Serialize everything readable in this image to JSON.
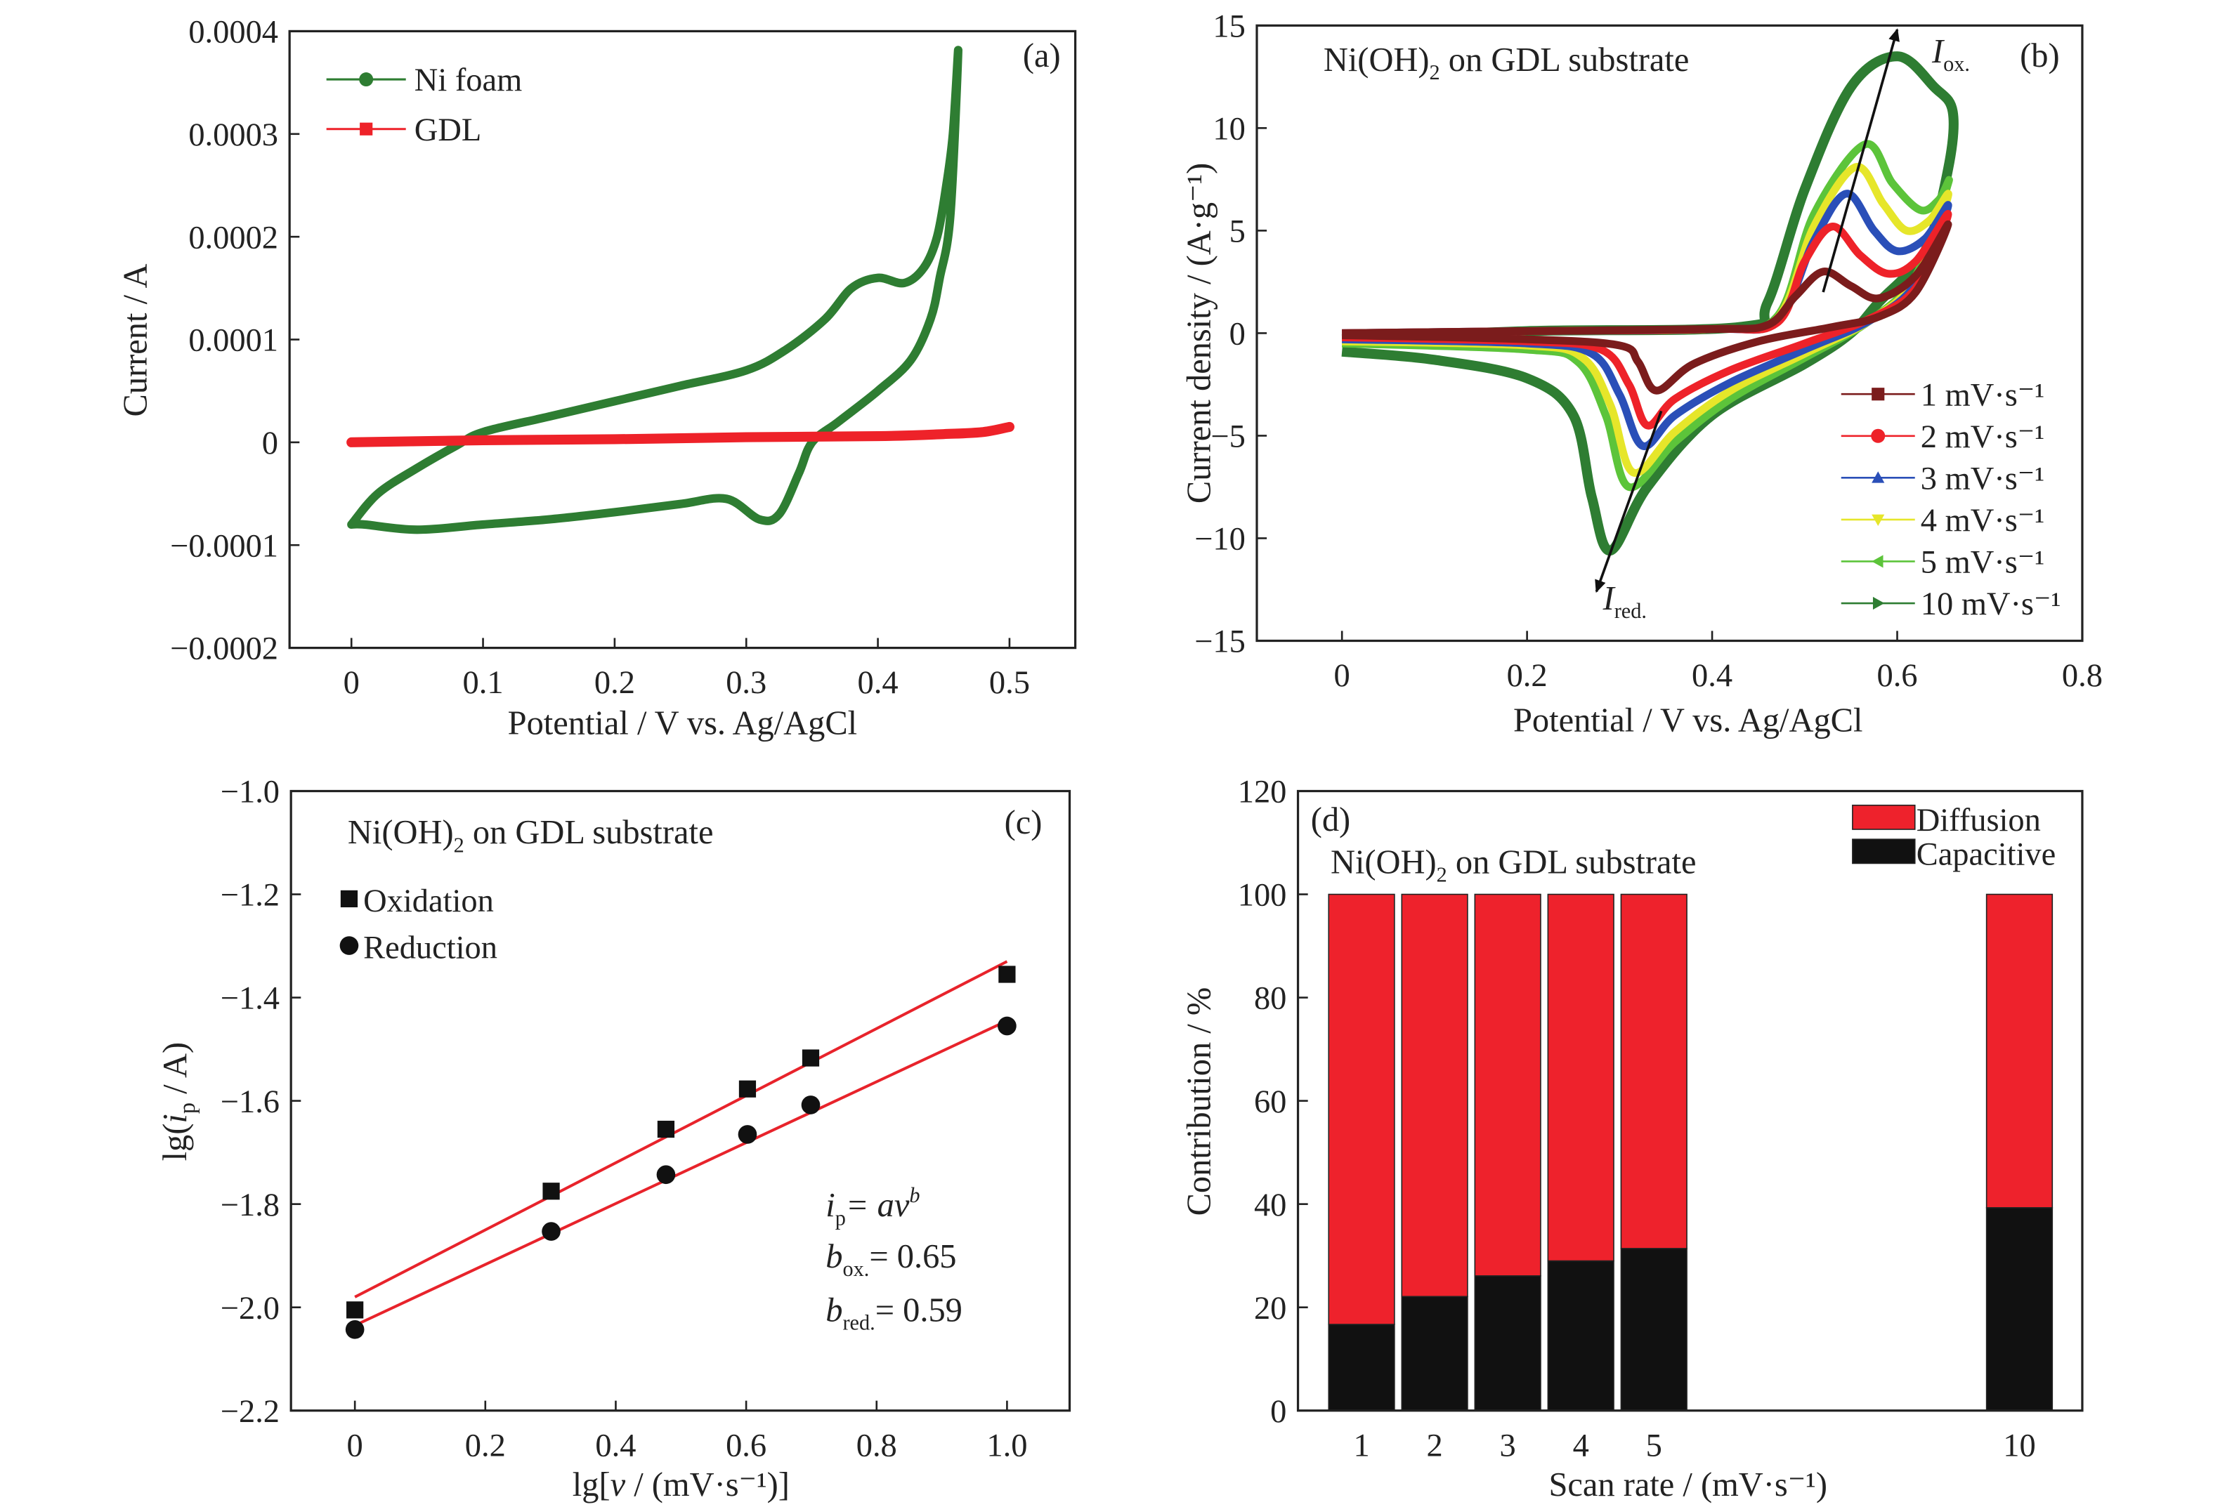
{
  "colors": {
    "ni_foam": "#2e7d32",
    "gdl": "#ee2229",
    "fit": "#e8232b",
    "diffusion": "#ee222c",
    "capacitive": "#111111",
    "r1": "#7b1c1c",
    "r2": "#ee2229",
    "r3": "#2a4fb8",
    "r4": "#e6e62a",
    "r5": "#5cc43a",
    "r10": "#2e7d32"
  },
  "chart_data": [
    {
      "panel": "(a)",
      "type": "line",
      "xlabel": "Potential / V vs. Ag/AgCl",
      "ylabel": "Current / A",
      "xlim": [
        -0.047,
        0.55
      ],
      "ylim": [
        -0.0002,
        0.0004
      ],
      "xticks": [
        "0",
        "0.1",
        "0.2",
        "0.3",
        "0.4",
        "0.5"
      ],
      "xtick_values": [
        0,
        0.1,
        0.2,
        0.3,
        0.4,
        0.5
      ],
      "yticks": [
        "−0.0002",
        "−0.0001",
        "0",
        "0.0001",
        "0.0002",
        "0.0003",
        "0.0004"
      ],
      "ytick_values": [
        -0.0002,
        -0.0001,
        0,
        0.0001,
        0.0002,
        0.0003,
        0.0004
      ],
      "series": [
        {
          "name": "Ni foam",
          "marker": "circle",
          "color_key": "ni_foam",
          "points": [
            [
              0,
              -8e-05
            ],
            [
              0.02,
              -5e-05
            ],
            [
              0.05,
              -2.5e-05
            ],
            [
              0.08,
              -3e-06
            ],
            [
              0.1,
              1e-05
            ],
            [
              0.15,
              2.5e-05
            ],
            [
              0.2,
              4e-05
            ],
            [
              0.25,
              5.5e-05
            ],
            [
              0.3,
              7e-05
            ],
            [
              0.33,
              9e-05
            ],
            [
              0.36,
              0.00012
            ],
            [
              0.38,
              0.00015
            ],
            [
              0.4,
              0.00016
            ],
            [
              0.42,
              0.000155
            ],
            [
              0.435,
              0.00017
            ],
            [
              0.445,
              0.0002
            ],
            [
              0.452,
              0.00025
            ],
            [
              0.457,
              0.0003
            ],
            [
              0.461,
              0.00038
            ],
            [
              0.455,
              0.00022
            ],
            [
              0.447,
              0.00016
            ],
            [
              0.44,
              0.00012
            ],
            [
              0.425,
              8e-05
            ],
            [
              0.4,
              5e-05
            ],
            [
              0.37,
              2e-05
            ],
            [
              0.35,
              0
            ],
            [
              0.34,
              -3e-05
            ],
            [
              0.325,
              -7e-05
            ],
            [
              0.31,
              -7.5e-05
            ],
            [
              0.285,
              -5.5e-05
            ],
            [
              0.25,
              -6e-05
            ],
            [
              0.2,
              -6.8e-05
            ],
            [
              0.15,
              -7.5e-05
            ],
            [
              0.1,
              -8e-05
            ],
            [
              0.05,
              -8.5e-05
            ],
            [
              0.01,
              -8e-05
            ],
            [
              0,
              -8e-05
            ]
          ]
        },
        {
          "name": "GDL",
          "marker": "square",
          "color_key": "gdl",
          "points": [
            [
              0,
              0
            ],
            [
              0.1,
              2e-06
            ],
            [
              0.2,
              3e-06
            ],
            [
              0.3,
              5e-06
            ],
            [
              0.4,
              6e-06
            ],
            [
              0.45,
              8e-06
            ],
            [
              0.48,
              1e-05
            ],
            [
              0.5,
              1.5e-05
            ]
          ]
        }
      ]
    },
    {
      "panel": "(b)",
      "type": "line",
      "xlabel": "Potential / V vs. Ag/AgCl",
      "ylabel": "Current density / (A·g⁻¹)",
      "xlim": [
        -0.092,
        0.8
      ],
      "ylim": [
        -15,
        15
      ],
      "xticks": [
        "0",
        "0.2",
        "0.4",
        "0.6",
        "0.8"
      ],
      "xtick_values": [
        0,
        0.2,
        0.4,
        0.6,
        0.8
      ],
      "yticks": [
        "−15",
        "−10",
        "−5",
        "0",
        "5",
        "10",
        "15"
      ],
      "ytick_values": [
        -15,
        -10,
        -5,
        0,
        5,
        10,
        15
      ],
      "series": [
        {
          "name": "1 mV·s⁻¹",
          "marker": "square",
          "color_key": "r1",
          "points": [
            [
              0,
              0
            ],
            [
              0.2,
              0.1
            ],
            [
              0.4,
              0.2
            ],
            [
              0.46,
              0.4
            ],
            [
              0.49,
              1.8
            ],
            [
              0.52,
              3.0
            ],
            [
              0.55,
              2.3
            ],
            [
              0.58,
              1.7
            ],
            [
              0.62,
              2.8
            ],
            [
              0.655,
              5.3
            ],
            [
              0.62,
              2.0
            ],
            [
              0.58,
              0.8
            ],
            [
              0.53,
              0.3
            ],
            [
              0.45,
              -0.4
            ],
            [
              0.38,
              -1.5
            ],
            [
              0.34,
              -2.8
            ],
            [
              0.32,
              -1.4
            ],
            [
              0.3,
              -0.6
            ],
            [
              0.2,
              -0.3
            ],
            [
              0,
              -0.1
            ]
          ]
        },
        {
          "name": "2 mV·s⁻¹",
          "marker": "circle",
          "color_key": "r2",
          "points": [
            [
              0,
              0
            ],
            [
              0.2,
              0.1
            ],
            [
              0.4,
              0.2
            ],
            [
              0.47,
              0.5
            ],
            [
              0.5,
              3.5
            ],
            [
              0.53,
              5.2
            ],
            [
              0.56,
              3.8
            ],
            [
              0.59,
              2.9
            ],
            [
              0.62,
              3.5
            ],
            [
              0.655,
              5.8
            ],
            [
              0.62,
              2.2
            ],
            [
              0.57,
              0.7
            ],
            [
              0.5,
              -0.5
            ],
            [
              0.42,
              -1.8
            ],
            [
              0.36,
              -3.2
            ],
            [
              0.33,
              -4.5
            ],
            [
              0.31,
              -2.5
            ],
            [
              0.28,
              -0.8
            ],
            [
              0.2,
              -0.4
            ],
            [
              0,
              -0.2
            ]
          ]
        },
        {
          "name": "3 mV·s⁻¹",
          "marker": "triangle-up",
          "color_key": "r3",
          "points": [
            [
              0,
              0
            ],
            [
              0.2,
              0.1
            ],
            [
              0.4,
              0.2
            ],
            [
              0.47,
              0.6
            ],
            [
              0.51,
              4.5
            ],
            [
              0.545,
              6.8
            ],
            [
              0.575,
              5.0
            ],
            [
              0.6,
              4.0
            ],
            [
              0.63,
              4.6
            ],
            [
              0.655,
              6.2
            ],
            [
              0.62,
              2.4
            ],
            [
              0.57,
              0.6
            ],
            [
              0.5,
              -0.8
            ],
            [
              0.42,
              -2.4
            ],
            [
              0.36,
              -4.0
            ],
            [
              0.325,
              -5.5
            ],
            [
              0.3,
              -3.0
            ],
            [
              0.27,
              -1.0
            ],
            [
              0.2,
              -0.5
            ],
            [
              0,
              -0.3
            ]
          ]
        },
        {
          "name": "4 mV·s⁻¹",
          "marker": "triangle-down",
          "color_key": "r4",
          "points": [
            [
              0,
              -0.1
            ],
            [
              0.2,
              0.1
            ],
            [
              0.4,
              0.2
            ],
            [
              0.47,
              0.7
            ],
            [
              0.51,
              5.2
            ],
            [
              0.555,
              8.1
            ],
            [
              0.585,
              6.3
            ],
            [
              0.61,
              5.0
            ],
            [
              0.635,
              5.5
            ],
            [
              0.655,
              6.7
            ],
            [
              0.62,
              2.6
            ],
            [
              0.57,
              0.6
            ],
            [
              0.5,
              -1.0
            ],
            [
              0.42,
              -2.8
            ],
            [
              0.36,
              -4.8
            ],
            [
              0.315,
              -6.8
            ],
            [
              0.29,
              -3.5
            ],
            [
              0.26,
              -1.2
            ],
            [
              0.2,
              -0.6
            ],
            [
              0,
              -0.4
            ]
          ]
        },
        {
          "name": "5 mV·s⁻¹",
          "marker": "triangle-left",
          "color_key": "r5",
          "points": [
            [
              0,
              -0.2
            ],
            [
              0.2,
              0.1
            ],
            [
              0.4,
              0.2
            ],
            [
              0.47,
              0.8
            ],
            [
              0.51,
              5.8
            ],
            [
              0.565,
              9.2
            ],
            [
              0.595,
              7.3
            ],
            [
              0.625,
              6.0
            ],
            [
              0.645,
              6.5
            ],
            [
              0.655,
              7.3
            ],
            [
              0.62,
              2.8
            ],
            [
              0.57,
              0.6
            ],
            [
              0.5,
              -1.2
            ],
            [
              0.42,
              -3.2
            ],
            [
              0.36,
              -5.3
            ],
            [
              0.31,
              -7.5
            ],
            [
              0.285,
              -4.0
            ],
            [
              0.255,
              -1.4
            ],
            [
              0.2,
              -0.8
            ],
            [
              0,
              -0.5
            ]
          ]
        },
        {
          "name": "10 mV·s⁻¹",
          "marker": "triangle-right",
          "color_key": "r10",
          "points": [
            [
              0,
              -0.3
            ],
            [
              0.2,
              0.1
            ],
            [
              0.43,
              0.3
            ],
            [
              0.46,
              1.5
            ],
            [
              0.5,
              7
            ],
            [
              0.55,
              12
            ],
            [
              0.6,
              13.5
            ],
            [
              0.64,
              12
            ],
            [
              0.66,
              10.8
            ],
            [
              0.655,
              8
            ],
            [
              0.63,
              4
            ],
            [
              0.58,
              1.5
            ],
            [
              0.55,
              0
            ],
            [
              0.5,
              -1.5
            ],
            [
              0.4,
              -4
            ],
            [
              0.33,
              -7.5
            ],
            [
              0.29,
              -10.6
            ],
            [
              0.27,
              -8
            ],
            [
              0.25,
              -4
            ],
            [
              0.2,
              -2.2
            ],
            [
              0.1,
              -1.3
            ],
            [
              0,
              -0.9
            ]
          ]
        }
      ],
      "annotations": {
        "title_main": "Ni(OH)",
        "title_sub": "2",
        "title_rest": " on GDL substrate",
        "ox_main": "I",
        "ox_sub": "ox.",
        "red_main": "I",
        "red_sub": "red."
      },
      "arrows": [
        {
          "from": [
            0.52,
            2.0
          ],
          "to": [
            0.6,
            14.8
          ]
        },
        {
          "from": [
            0.345,
            -3.8
          ],
          "to": [
            0.275,
            -12.6
          ]
        }
      ]
    },
    {
      "panel": "(c)",
      "type": "scatter",
      "xlabel_pre": "lg[",
      "xlabel_var": "v",
      "xlabel_post": " / (mV·s⁻¹)]",
      "ylabel_pre": "lg(",
      "ylabel_var": "i",
      "ylabel_sub": "p",
      "ylabel_post": " / A)",
      "xlim": [
        -0.098,
        1.096
      ],
      "ylim": [
        -2.2,
        -1.0
      ],
      "xticks": [
        "0",
        "0.2",
        "0.4",
        "0.6",
        "0.8",
        "1.0"
      ],
      "xtick_values": [
        0,
        0.2,
        0.4,
        0.6,
        0.8,
        1.0
      ],
      "yticks": [
        "−2.2",
        "−2.0",
        "−1.8",
        "−1.6",
        "−1.4",
        "−1.2",
        "−1.0"
      ],
      "ytick_values": [
        -2.2,
        -2.0,
        -1.8,
        -1.6,
        -1.4,
        -1.2,
        -1.0
      ],
      "x": [
        0,
        0.301,
        0.477,
        0.602,
        0.699,
        1.0
      ],
      "series": [
        {
          "name": "Oxidation",
          "marker": "square",
          "values": [
            -2.005,
            -1.775,
            -1.655,
            -1.577,
            -1.517,
            -1.355
          ],
          "fit": [
            [
              0,
              -1.98
            ],
            [
              1,
              -1.33
            ]
          ]
        },
        {
          "name": "Reduction",
          "marker": "circle",
          "values": [
            -2.043,
            -1.853,
            -1.743,
            -1.665,
            -1.608,
            -1.455
          ],
          "fit": [
            [
              0,
              -2.035
            ],
            [
              1,
              -1.445
            ]
          ]
        }
      ],
      "annotations": {
        "title_main": "Ni(OH)",
        "title_sub": "2",
        "title_rest": " on GDL substrate",
        "eq_i": "i",
        "eq_p": "p",
        "eq_rest": "= a",
        "eq_v": "v",
        "eq_b": "b",
        "box_b": "b",
        "box_sub": "ox.",
        "box_val": "= 0.65",
        "bred_b": "b",
        "bred_sub": "red.",
        "bred_val": "= 0.59"
      }
    },
    {
      "panel": "(d)",
      "type": "bar",
      "stacked": true,
      "xlabel": "Scan rate / (mV·s⁻¹)",
      "ylabel": "Contribution / %",
      "xlim": [
        0.13,
        10.86
      ],
      "ylim": [
        0,
        120
      ],
      "categories": [
        "1",
        "2",
        "3",
        "4",
        "5",
        "10"
      ],
      "x": [
        1,
        2,
        3,
        4,
        5,
        10
      ],
      "yticks": [
        "0",
        "20",
        "40",
        "60",
        "80",
        "100",
        "120"
      ],
      "ytick_values": [
        0,
        20,
        40,
        60,
        80,
        100,
        120
      ],
      "series": [
        {
          "name": "Capacitive",
          "color_key": "capacitive",
          "values": [
            16.7,
            22.1,
            26.1,
            29.0,
            31.4,
            39.3
          ]
        },
        {
          "name": "Diffusion",
          "color_key": "diffusion",
          "values": [
            83.3,
            77.9,
            73.9,
            71.0,
            68.6,
            60.7
          ]
        }
      ],
      "legend": [
        "Diffusion",
        "Capacitive"
      ],
      "annotations": {
        "title_main": "Ni(OH)",
        "title_sub": "2",
        "title_rest": " on GDL substrate"
      }
    }
  ]
}
